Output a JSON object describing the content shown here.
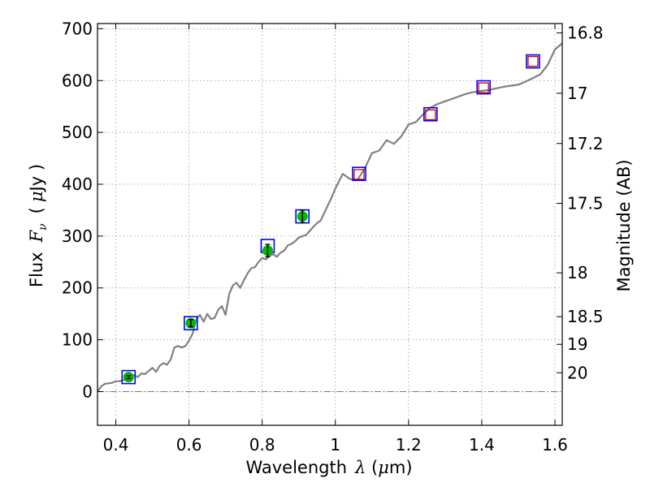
{
  "chart_data": {
    "type": "line",
    "title": "",
    "xlabel": "Wavelength",
    "xlabel_symbol": "λ",
    "xlabel_unit_open": " (",
    "xlabel_unit_mu": "μ",
    "xlabel_unit_rest": "m)",
    "ylabel": "Flux",
    "ylabel_symbol": "F",
    "ylabel_symbol_sub": "ν",
    "ylabel_unit_open": "(",
    "ylabel_unit_mu": "μ",
    "ylabel_unit_rest": "Jy )",
    "y2label": "Magnitude (AB)",
    "xlim": [
      0.35,
      1.62
    ],
    "ylim": [
      -65,
      710
    ],
    "grid": true,
    "zero_line": true,
    "x_ticks": [
      0.4,
      0.6,
      0.8,
      1.0,
      1.2,
      1.4,
      1.6
    ],
    "x_tick_labels": [
      "0.4",
      "0.6",
      "0.8",
      "1",
      "1.2",
      "1.4",
      "1.6"
    ],
    "y_ticks": [
      0,
      100,
      200,
      300,
      400,
      500,
      600,
      700
    ],
    "y_tick_labels": [
      "0",
      "100",
      "200",
      "300",
      "400",
      "500",
      "600",
      "700"
    ],
    "mag_ticks": [
      {
        "mag": 16.8,
        "label": "16.8"
      },
      {
        "mag": 17.0,
        "label": "17"
      },
      {
        "mag": 17.2,
        "label": "17.2"
      },
      {
        "mag": 17.5,
        "label": "17.5"
      },
      {
        "mag": 18.0,
        "label": "18"
      },
      {
        "mag": 18.5,
        "label": "18.5"
      },
      {
        "mag": 19.0,
        "label": "19"
      },
      {
        "mag": 20.0,
        "label": "20"
      }
    ],
    "colors": {
      "spectrum": "#808080",
      "model_box": "#0000ff",
      "photometry_box": "#cc0000",
      "observed": "#00bb00",
      "grid": "#999999"
    },
    "series": [
      {
        "kind": "spectrum",
        "x": [
          0.35,
          0.36,
          0.37,
          0.38,
          0.39,
          0.4,
          0.41,
          0.42,
          0.43,
          0.44,
          0.45,
          0.46,
          0.47,
          0.48,
          0.49,
          0.5,
          0.51,
          0.52,
          0.53,
          0.54,
          0.55,
          0.56,
          0.57,
          0.58,
          0.59,
          0.6,
          0.61,
          0.62,
          0.63,
          0.64,
          0.65,
          0.66,
          0.67,
          0.68,
          0.69,
          0.7,
          0.71,
          0.72,
          0.73,
          0.74,
          0.75,
          0.76,
          0.77,
          0.78,
          0.79,
          0.8,
          0.81,
          0.82,
          0.83,
          0.84,
          0.85,
          0.86,
          0.87,
          0.88,
          0.89,
          0.9,
          0.91,
          0.92,
          0.93,
          0.94,
          0.95,
          0.96,
          0.97,
          0.98,
          0.99,
          1.0,
          1.02,
          1.04,
          1.06,
          1.08,
          1.1,
          1.12,
          1.14,
          1.16,
          1.18,
          1.2,
          1.22,
          1.24,
          1.26,
          1.28,
          1.3,
          1.32,
          1.34,
          1.36,
          1.38,
          1.4,
          1.42,
          1.44,
          1.46,
          1.48,
          1.5,
          1.52,
          1.54,
          1.56,
          1.58,
          1.6,
          1.62
        ],
        "y": [
          0,
          10,
          15,
          16,
          17,
          20,
          20,
          22,
          25,
          30,
          32,
          28,
          35,
          34,
          40,
          46,
          38,
          50,
          55,
          52,
          62,
          85,
          88,
          85,
          88,
          98,
          112,
          140,
          148,
          135,
          150,
          140,
          142,
          158,
          165,
          148,
          188,
          205,
          210,
          200,
          215,
          228,
          238,
          240,
          250,
          258,
          255,
          262,
          265,
          260,
          268,
          272,
          282,
          285,
          290,
          297,
          300,
          302,
          310,
          318,
          325,
          330,
          345,
          360,
          375,
          392,
          420,
          410,
          408,
          430,
          460,
          465,
          485,
          478,
          492,
          515,
          520,
          535,
          548,
          555,
          560,
          565,
          570,
          575,
          578,
          580,
          582,
          585,
          588,
          590,
          592,
          598,
          605,
          612,
          630,
          660,
          672
        ]
      },
      {
        "kind": "model",
        "x": [
          0.435,
          0.605,
          0.815,
          0.91,
          1.065,
          1.26,
          1.405,
          1.54
        ],
        "y": [
          28,
          132,
          281,
          338,
          420,
          535,
          587,
          637
        ]
      },
      {
        "kind": "photometry",
        "x": [
          1.065,
          1.26,
          1.405,
          1.54
        ],
        "y": [
          419,
          534,
          586,
          637
        ]
      },
      {
        "kind": "observed",
        "x": [
          0.435,
          0.605,
          0.815,
          0.91
        ],
        "y": [
          28,
          132,
          272,
          338
        ],
        "yerr": [
          3,
          7,
          12,
          12
        ]
      }
    ]
  }
}
